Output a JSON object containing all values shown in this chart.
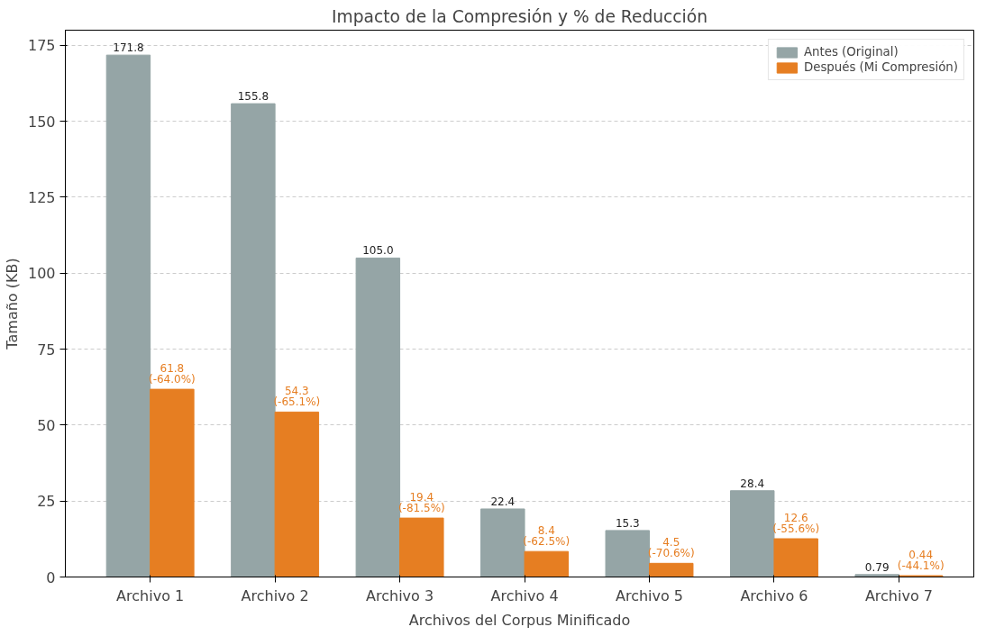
{
  "chart_data": {
    "type": "bar",
    "title": "Impacto de la Compresión y % de Reducción",
    "xlabel": "Archivos del Corpus Minificado",
    "ylabel": "Tamaño (KB)",
    "categories": [
      "Archivo 1",
      "Archivo 2",
      "Archivo 3",
      "Archivo 4",
      "Archivo 5",
      "Archivo 6",
      "Archivo 7"
    ],
    "series": [
      {
        "name": "Antes (Original)",
        "color": "#95a5a6",
        "values": [
          171.8,
          155.8,
          105.0,
          22.4,
          15.3,
          28.4,
          0.79
        ],
        "value_labels": [
          "171.8",
          "155.8",
          "105.0",
          "22.4",
          "15.3",
          "28.4",
          "0.79"
        ]
      },
      {
        "name": "Después (Mi Compresión)",
        "color": "#e67e22",
        "values": [
          61.8,
          54.3,
          19.4,
          8.4,
          4.5,
          12.6,
          0.44
        ],
        "value_labels": [
          "61.8\n(-64.0%)",
          "54.3\n(-65.1%)",
          "19.4\n(-81.5%)",
          "8.4\n(-62.5%)",
          "4.5\n(-70.6%)",
          "12.6\n(-55.6%)",
          "0.44\n(-44.1%)"
        ]
      }
    ],
    "ylim": [
      0,
      180
    ],
    "yticks": [
      0,
      25,
      50,
      75,
      100,
      125,
      150,
      175
    ],
    "grid": "y",
    "legend": "top right"
  }
}
